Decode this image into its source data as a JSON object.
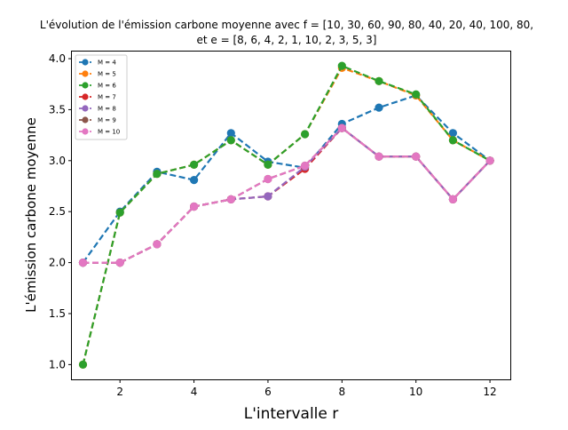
{
  "chart_data": {
    "type": "line",
    "title_line1": "L'évolution de l'émission carbone moyenne avec f = [10, 30, 60, 90, 80, 40, 20, 40, 100, 80,",
    "title_line2": "et e = [8, 6, 4, 2, 1, 10, 2, 3, 5, 3]",
    "xlabel": "L'intervalle r",
    "ylabel": "L'émission carbone moyenne",
    "xlim": [
      0.7,
      12.55
    ],
    "ylim": [
      0.855,
      4.07
    ],
    "xticks": [
      2,
      4,
      6,
      8,
      10,
      12
    ],
    "yticks": [
      1.0,
      1.5,
      2.0,
      2.5,
      3.0,
      3.5,
      4.0
    ],
    "ytick_labels": [
      "1.0",
      "1.5",
      "2.0",
      "2.5",
      "3.0",
      "3.5",
      "4.0"
    ],
    "grid": false,
    "legend_position": "top-left",
    "x": [
      1,
      2,
      3,
      4,
      5,
      6,
      7,
      8,
      9,
      10,
      11,
      12
    ],
    "series": [
      {
        "name": "M = 4",
        "color": "#1f77b4",
        "values": [
          2.0,
          2.5,
          2.89,
          2.81,
          3.27,
          2.99,
          2.93,
          3.36,
          3.52,
          3.64,
          3.27,
          3.0
        ]
      },
      {
        "name": "M = 5",
        "color": "#ff7f0e",
        "values": [
          1.0,
          2.49,
          2.87,
          2.96,
          3.2,
          2.96,
          3.26,
          3.91,
          3.78,
          3.64,
          3.2,
          3.0
        ]
      },
      {
        "name": "M = 6",
        "color": "#2ca02c",
        "values": [
          1.0,
          2.49,
          2.87,
          2.96,
          3.2,
          2.96,
          3.26,
          3.93,
          3.78,
          3.65,
          3.2,
          3.0
        ]
      },
      {
        "name": "M = 7",
        "color": "#d62728",
        "values": [
          2.0,
          2.0,
          2.18,
          2.55,
          2.62,
          2.65,
          2.92,
          3.32,
          3.04,
          3.04,
          2.62,
          3.0
        ]
      },
      {
        "name": "M = 8",
        "color": "#9467bd",
        "values": [
          2.0,
          2.0,
          2.18,
          2.55,
          2.62,
          2.65,
          2.94,
          3.32,
          3.04,
          3.04,
          2.62,
          3.0
        ]
      },
      {
        "name": "M = 9",
        "color": "#8c564b",
        "values": [
          2.0,
          2.0,
          2.18,
          2.55,
          2.62,
          2.82,
          2.95,
          3.32,
          3.04,
          3.04,
          2.62,
          3.0
        ]
      },
      {
        "name": "M = 10",
        "color": "#e377c2",
        "values": [
          2.0,
          2.0,
          2.18,
          2.55,
          2.62,
          2.82,
          2.95,
          3.32,
          3.04,
          3.04,
          2.62,
          3.0
        ]
      }
    ]
  }
}
